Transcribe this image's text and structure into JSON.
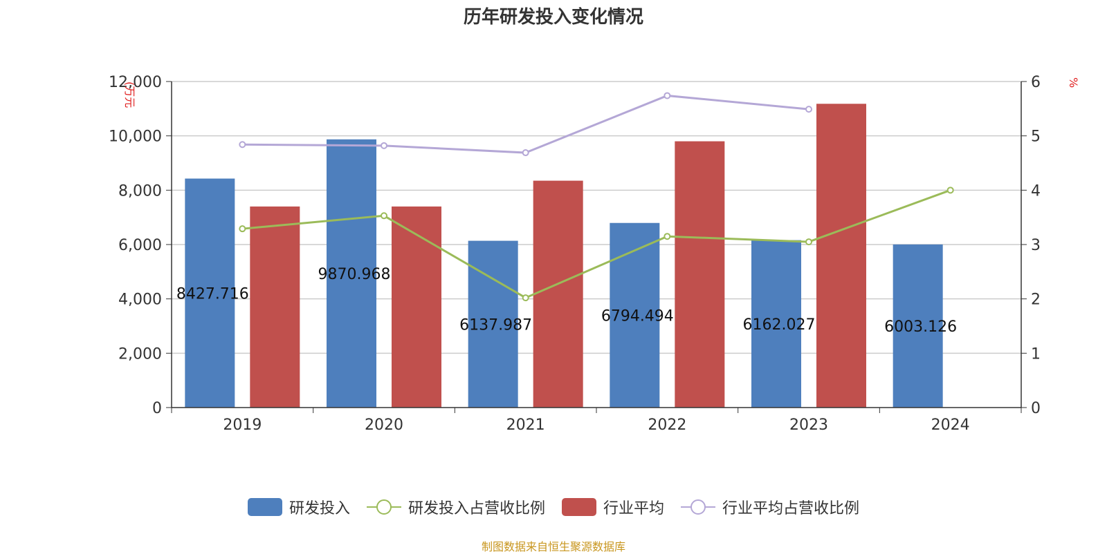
{
  "title": "历年研发投入变化情况",
  "source": "制图数据来自恒生聚源数据库",
  "chart_data": {
    "type": "bar",
    "title": "历年研发投入变化情况",
    "categories": [
      "2019",
      "2020",
      "2021",
      "2022",
      "2023",
      "2024"
    ],
    "y_left": {
      "label": "(万元",
      "range": [
        0,
        12000
      ],
      "ticks": [
        "0",
        "2,000",
        "4,000",
        "6,000",
        "8,000",
        "10,000",
        "12,000"
      ]
    },
    "y_right": {
      "label": "%",
      "range": [
        0,
        6
      ],
      "ticks": [
        "0",
        "1",
        "2",
        "3",
        "4",
        "5",
        "6"
      ]
    },
    "grid": true,
    "legend_position": "bottom",
    "series": [
      {
        "name": "研发投入",
        "type": "bar",
        "axis": "left",
        "color": "#4e7fbd",
        "values": [
          8427.716,
          9870.968,
          6137.987,
          6794.494,
          6162.027,
          6003.126
        ],
        "labels": [
          "8427.716",
          "9870.968",
          "6137.987",
          "6794.494",
          "6162.027",
          "6003.126"
        ]
      },
      {
        "name": "行业平均",
        "type": "bar",
        "axis": "left",
        "color": "#c0504d",
        "values": [
          7400,
          7400,
          8350,
          9800,
          11180,
          null
        ]
      },
      {
        "name": "研发投入占营收比例",
        "type": "line",
        "axis": "right",
        "color": "#9bbb59",
        "values": [
          3.29,
          3.53,
          2.02,
          3.15,
          3.05,
          4.0
        ]
      },
      {
        "name": "行业平均占营收比例",
        "type": "line",
        "axis": "right",
        "color": "#b4a7d6",
        "values": [
          4.84,
          4.82,
          4.69,
          5.74,
          5.49,
          null
        ]
      }
    ]
  }
}
